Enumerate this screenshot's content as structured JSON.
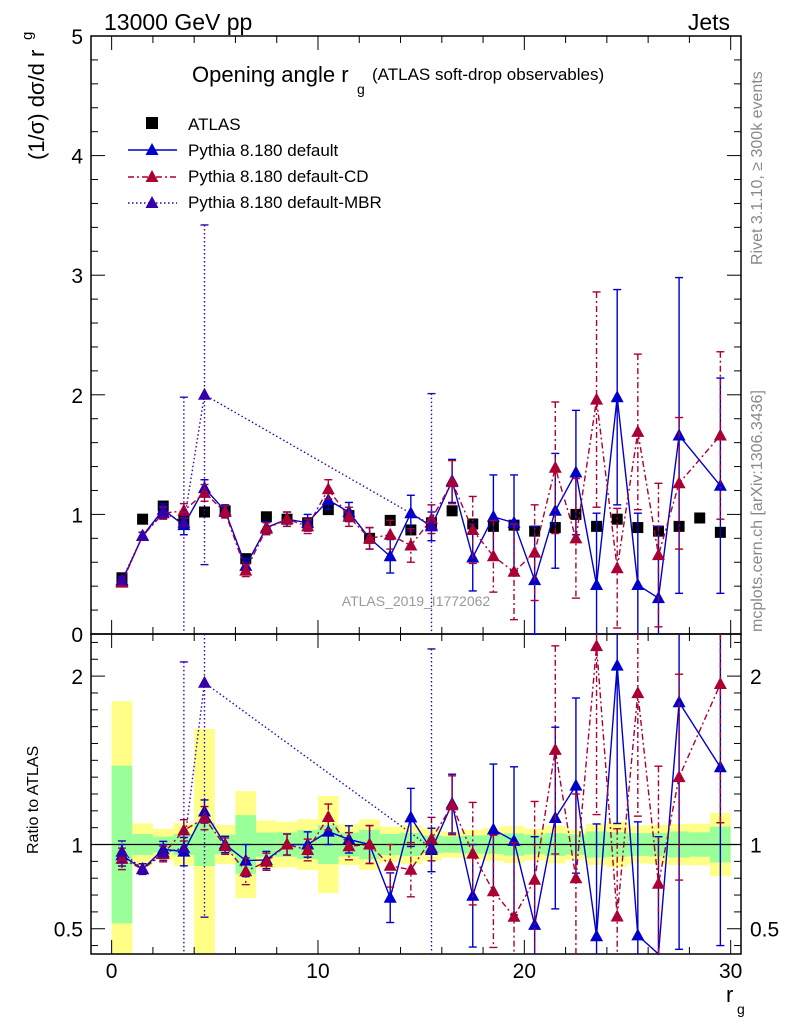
{
  "header": {
    "energy_label": "13000 GeV pp",
    "process_label": "Jets"
  },
  "side_labels": {
    "rivet": "Rivet 3.1.10, ≥ 300k events",
    "mcplots": "mcplots.cern.ch [arXiv:1306.3436]"
  },
  "analysis_id": "ATLAS_2019_I1772062",
  "chart_data": {
    "type": "line",
    "title_main": "Opening angle r",
    "title_sub": "g",
    "title_rest": "(ATLAS soft-drop observables)",
    "ylabel": "(1/σ) dσ/d r",
    "ylabel_sub": "g",
    "xlabel": "r",
    "xlabel_sub": "g",
    "ratio_ylabel": "Ratio to ATLAS",
    "xlim": [
      -1,
      30.5
    ],
    "ylim": [
      0,
      5
    ],
    "ratio_ylim": [
      0.35,
      2.25
    ],
    "x_ticks": [
      0,
      10,
      20,
      30
    ],
    "y_ticks": [
      0,
      1,
      2,
      3,
      4,
      5
    ],
    "ratio_ticks": [
      0.5,
      1,
      2
    ],
    "ratio_tick_labels": [
      "0.5",
      "1",
      "2"
    ],
    "legend": [
      "ATLAS",
      "Pythia 8.180 default",
      "Pythia 8.180 default-CD",
      "Pythia 8.180 default-MBR"
    ],
    "colors": {
      "data": "#000000",
      "default": "#0000cc",
      "cd": "#aa0033",
      "mbr": "#3300aa",
      "band_inner": "#99ff99",
      "band_outer": "#ffff88"
    },
    "x": [
      0.5,
      1.5,
      2.5,
      3.5,
      4.5,
      5.5,
      6.5,
      7.5,
      8.5,
      9.5,
      10.5,
      11.5,
      12.5,
      13.5,
      14.5,
      15.5,
      16.5,
      17.5,
      18.5,
      19.5,
      20.5,
      21.5,
      22.5,
      23.5,
      24.5,
      25.5,
      26.5,
      27.5,
      28.5,
      29.5
    ],
    "atlas": {
      "name": "ATLAS",
      "values": [
        0.47,
        0.96,
        1.07,
        0.95,
        1.02,
        1.03,
        0.63,
        0.98,
        0.96,
        0.93,
        1.04,
        0.99,
        0.8,
        0.95,
        0.87,
        0.93,
        1.03,
        0.92,
        0.9,
        0.91,
        0.86,
        0.89,
        1.0,
        0.9,
        0.96,
        0.89,
        0.86,
        0.9,
        0.97,
        0.85
      ],
      "band_inner": [
        0.22,
        0.06,
        0.05,
        0.06,
        0.13,
        0.06,
        0.11,
        0.07,
        0.07,
        0.08,
        0.12,
        0.07,
        0.07,
        0.06,
        0.06,
        0.05,
        0.05,
        0.05,
        0.05,
        0.06,
        0.05,
        0.06,
        0.06,
        0.07,
        0.07,
        0.06,
        0.06,
        0.07,
        0.07,
        0.09
      ],
      "band_outer": [
        0.4,
        0.12,
        0.1,
        0.12,
        0.7,
        0.12,
        0.2,
        0.14,
        0.13,
        0.14,
        0.3,
        0.12,
        0.12,
        0.1,
        0.1,
        0.09,
        0.08,
        0.08,
        0.09,
        0.1,
        0.08,
        0.1,
        0.09,
        0.11,
        0.13,
        0.1,
        0.1,
        0.11,
        0.12,
        0.16
      ]
    },
    "series": [
      {
        "name": "Pythia 8.180 default",
        "style": "default",
        "x": [
          0.5,
          1.5,
          2.5,
          3.5,
          4.5,
          5.5,
          6.5,
          7.5,
          8.5,
          9.5,
          10.5,
          11.5,
          12.5,
          13.5,
          14.5,
          15.5,
          16.5,
          17.5,
          18.5,
          19.5,
          20.5,
          21.5,
          22.5,
          23.5,
          24.5,
          25.5,
          26.5,
          27.5,
          29.5
        ],
        "values": [
          0.44,
          0.82,
          1.04,
          0.91,
          1.22,
          1.03,
          0.57,
          0.89,
          0.96,
          0.93,
          1.12,
          1.02,
          0.8,
          0.65,
          1.01,
          0.9,
          1.28,
          0.64,
          0.98,
          0.93,
          0.45,
          1.03,
          1.35,
          0.41,
          1.98,
          0.41,
          0.3,
          1.66,
          1.24
        ],
        "errors": [
          0.03,
          0.03,
          0.05,
          0.08,
          0.07,
          0.05,
          0.06,
          0.05,
          0.06,
          0.07,
          0.08,
          0.08,
          0.09,
          0.14,
          0.15,
          0.12,
          0.18,
          0.28,
          0.35,
          0.4,
          0.45,
          0.48,
          0.52,
          0.6,
          0.9,
          0.6,
          0.6,
          1.32,
          0.9
        ]
      },
      {
        "name": "Pythia 8.180 default-CD",
        "style": "cd",
        "x": [
          0.5,
          1.5,
          2.5,
          3.5,
          4.5,
          5.5,
          6.5,
          7.5,
          8.5,
          9.5,
          10.5,
          11.5,
          12.5,
          13.5,
          14.5,
          15.5,
          16.5,
          17.5,
          18.5,
          19.5,
          20.5,
          21.5,
          22.5,
          23.5,
          24.5,
          25.5,
          26.5,
          27.5,
          29.5
        ],
        "values": [
          0.43,
          0.82,
          1.01,
          1.03,
          1.18,
          1.02,
          0.53,
          0.88,
          0.96,
          0.9,
          1.21,
          0.98,
          0.8,
          0.83,
          0.74,
          0.96,
          1.27,
          0.87,
          0.65,
          0.52,
          0.68,
          1.39,
          0.8,
          1.96,
          0.55,
          1.69,
          0.66,
          1.26,
          1.66
        ],
        "errors": [
          0.03,
          0.03,
          0.05,
          0.06,
          0.07,
          0.05,
          0.05,
          0.05,
          0.06,
          0.06,
          0.08,
          0.08,
          0.09,
          0.12,
          0.14,
          0.12,
          0.18,
          0.28,
          0.3,
          0.4,
          0.4,
          0.55,
          0.5,
          0.9,
          0.5,
          0.65,
          0.6,
          0.55,
          0.7
        ]
      },
      {
        "name": "Pythia 8.180 default-MBR",
        "style": "mbr",
        "x": [
          0.5,
          1.5,
          2.5,
          3.5,
          4.5,
          15.5
        ],
        "values": [
          0.45,
          0.82,
          1.02,
          0.93,
          2.0,
          0.91
        ],
        "errors": [
          0.03,
          0.03,
          0.05,
          1.05,
          1.42,
          1.1
        ]
      }
    ]
  }
}
